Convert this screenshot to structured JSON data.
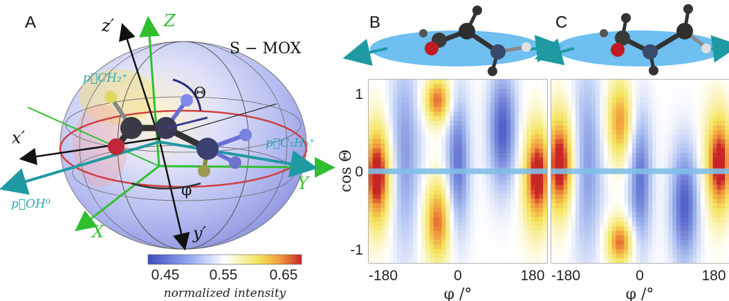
{
  "panels": {
    "a_label": "A",
    "b_label": "B",
    "c_label": "C"
  },
  "molecule_frame": {
    "title": "S − MOX",
    "axes_lab": [
      "X",
      "Y",
      "Z"
    ],
    "axes_mol": [
      "x′",
      "y′",
      "z′"
    ],
    "angle_theta": "Θ",
    "angle_phi": "φ",
    "vectors": {
      "ch2": "p⃗CH₂⁺",
      "c2h3": "p⃗C₂H₃⁺",
      "oh": "p⃗OH⁰"
    },
    "colors": {
      "lab_axes": "#2fbf2f",
      "vector_arrows": "#2aa7b0",
      "molecule_plane": "#5fb8f0"
    }
  },
  "colorbar": {
    "ticks": [
      "0.45",
      "0.55",
      "0.65"
    ],
    "label": "normalized intensity",
    "colors": [
      "#3b4cc0",
      "#ffffff",
      "#f2e24a",
      "#d73027"
    ]
  },
  "chart_data": [
    {
      "type": "heatmap",
      "panel": "B",
      "xlabel": "φ /°",
      "ylabel": "cos Θ",
      "xlim": [
        -200,
        200
      ],
      "ylim": [
        -1.1,
        1.1
      ],
      "xticks": [
        "-180",
        "0",
        "180"
      ],
      "yticks": [
        "1",
        "0",
        "-1"
      ],
      "highlight_line_y": 0,
      "value_range": [
        0.45,
        0.65
      ],
      "blobs": [
        {
          "x": -45,
          "y": 0.85,
          "v": 0.64,
          "sx": 22,
          "sy": 0.2
        },
        {
          "x": -45,
          "y": -0.6,
          "v": 0.64,
          "sx": 22,
          "sy": 0.35
        },
        {
          "x": 180,
          "y": -0.1,
          "v": 0.62,
          "sx": 25,
          "sy": 0.45
        },
        {
          "x": -180,
          "y": 0.0,
          "v": 0.6,
          "sx": 20,
          "sy": 0.4
        },
        {
          "x": 0,
          "y": 0.1,
          "v": 0.47,
          "sx": 18,
          "sy": 0.6
        },
        {
          "x": 100,
          "y": 0.5,
          "v": 0.46,
          "sx": 22,
          "sy": 0.5
        },
        {
          "x": -120,
          "y": 0.2,
          "v": 0.49,
          "sx": 25,
          "sy": 0.8
        }
      ]
    },
    {
      "type": "heatmap",
      "panel": "C",
      "xlabel": "φ /°",
      "ylabel": "",
      "xlim": [
        -200,
        200
      ],
      "ylim": [
        -1.1,
        1.1
      ],
      "xticks": [
        "-180",
        "0",
        "180"
      ],
      "yticks": [],
      "highlight_line_y": 0,
      "value_range": [
        0.45,
        0.65
      ],
      "blobs": [
        {
          "x": -45,
          "y": -0.85,
          "v": 0.64,
          "sx": 22,
          "sy": 0.2
        },
        {
          "x": -45,
          "y": 0.6,
          "v": 0.63,
          "sx": 22,
          "sy": 0.35
        },
        {
          "x": 180,
          "y": 0.15,
          "v": 0.62,
          "sx": 25,
          "sy": 0.45
        },
        {
          "x": -180,
          "y": 0.0,
          "v": 0.6,
          "sx": 20,
          "sy": 0.4
        },
        {
          "x": 0,
          "y": -0.1,
          "v": 0.47,
          "sx": 18,
          "sy": 0.6
        },
        {
          "x": 100,
          "y": -0.4,
          "v": 0.46,
          "sx": 22,
          "sy": 0.5
        },
        {
          "x": -120,
          "y": 0.1,
          "v": 0.49,
          "sx": 25,
          "sy": 0.8
        }
      ]
    }
  ]
}
